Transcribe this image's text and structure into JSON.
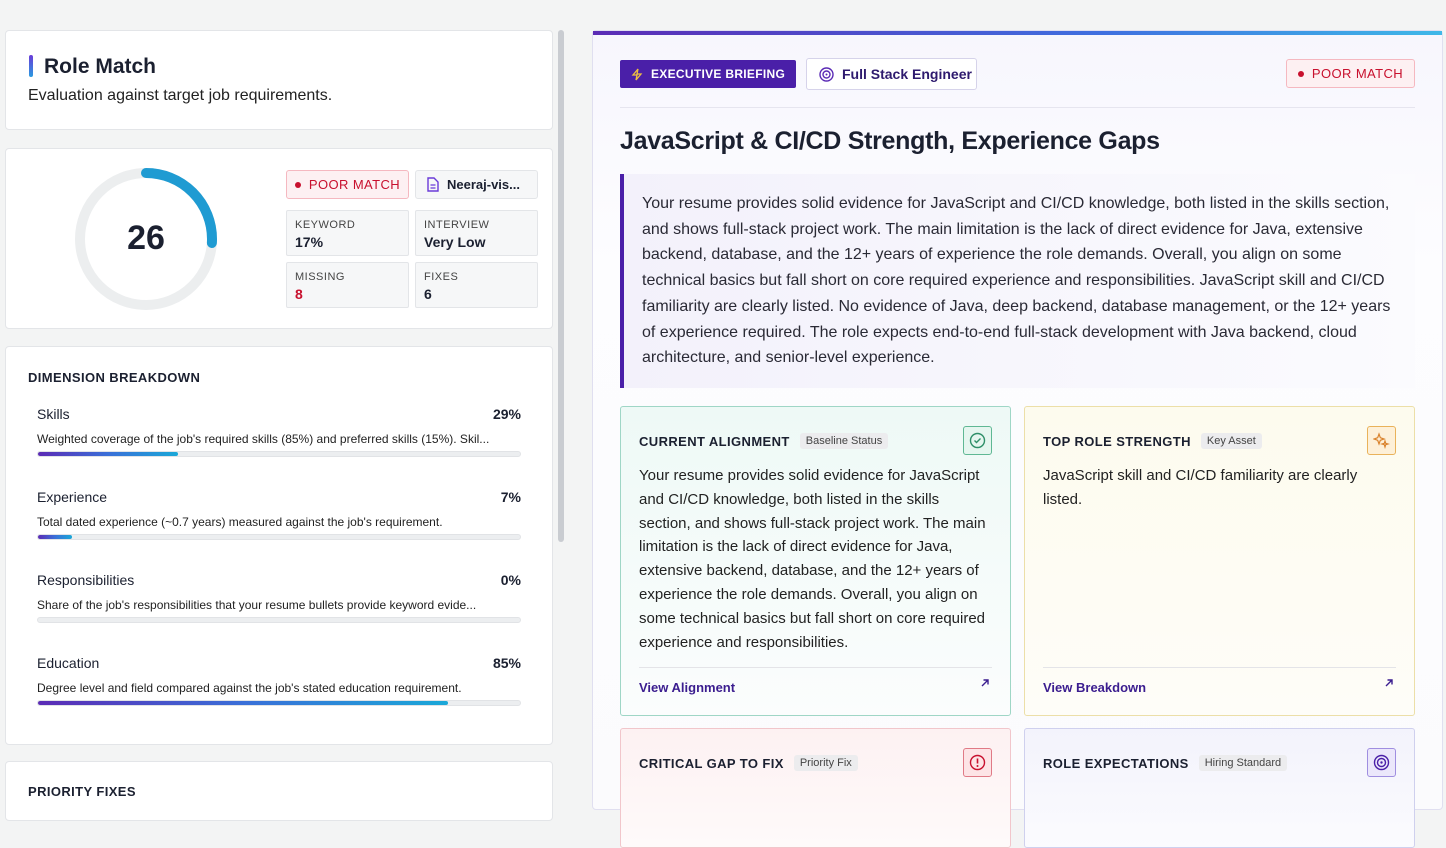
{
  "role_match": {
    "title": "Role Match",
    "subtitle": "Evaluation against target job requirements."
  },
  "score_card": {
    "score": 26,
    "match_badge": "POOR MATCH",
    "file_name": "Neeraj-vis...",
    "stats": [
      {
        "label": "KEYWORD",
        "value": "17%"
      },
      {
        "label": "INTERVIEW",
        "value": "Very Low"
      },
      {
        "label": "MISSING",
        "value": "8"
      },
      {
        "label": "FIXES",
        "value": "6"
      }
    ]
  },
  "dimensions": {
    "title": "DIMENSION BREAKDOWN",
    "items": [
      {
        "name": "Skills",
        "score": {
          "value": 29,
          "label": "29%"
        },
        "description": "Weighted coverage of the job's required skills (85%) and preferred skills (15%). Skil..."
      },
      {
        "name": "Experience",
        "score": {
          "value": 7,
          "label": "7%"
        },
        "description": "Total dated experience (~0.7 years) measured against the job's requirement."
      },
      {
        "name": "Responsibilities",
        "score": {
          "value": 0,
          "label": "0%"
        },
        "description": "Share of the job's responsibilities that your resume bullets provide keyword evide..."
      },
      {
        "name": "Education",
        "score": {
          "value": 85,
          "label": "85%"
        },
        "description": "Degree level and field compared against the job's stated education requirement."
      }
    ]
  },
  "priority_fixes": {
    "title": "PRIORITY FIXES"
  },
  "briefing": {
    "badge": "EXECUTIVE BRIEFING",
    "role": "Full Stack Engineer",
    "match_badge": "POOR MATCH",
    "title": "JavaScript & CI/CD Strength, Experience Gaps",
    "summary": "Your resume provides solid evidence for JavaScript and CI/CD knowledge, both listed in the skills section, and shows full-stack project work. The main limitation is the lack of direct evidence for Java, extensive backend, database, and the 12+ years of experience the role demands. Overall, you align on some technical basics but fall short on core required experience and responsibilities. JavaScript skill and CI/CD familiarity are clearly listed. No evidence of Java, deep backend, database management, or the 12+ years of experience required. The role expects end-to-end full-stack development with Java backend, cloud architecture, and senior-level experience.",
    "cards": [
      {
        "title": "CURRENT ALIGNMENT",
        "tag": "Baseline Status",
        "body": "Your resume provides solid evidence for JavaScript and CI/CD knowledge, both listed in the skills section, and shows full-stack project work. The main limitation is the lack of direct evidence for Java, extensive backend, database, and the 12+ years of experience the role demands. Overall, you align on some technical basics but fall short on core required experience and responsibilities.",
        "link": "View Alignment"
      },
      {
        "title": "TOP ROLE STRENGTH",
        "tag": "Key Asset",
        "body": "JavaScript skill and CI/CD familiarity are clearly listed.",
        "link": "View Breakdown"
      },
      {
        "title": "CRITICAL GAP TO FIX",
        "tag": "Priority Fix"
      },
      {
        "title": "ROLE EXPECTATIONS",
        "tag": "Hiring Standard"
      }
    ]
  }
}
